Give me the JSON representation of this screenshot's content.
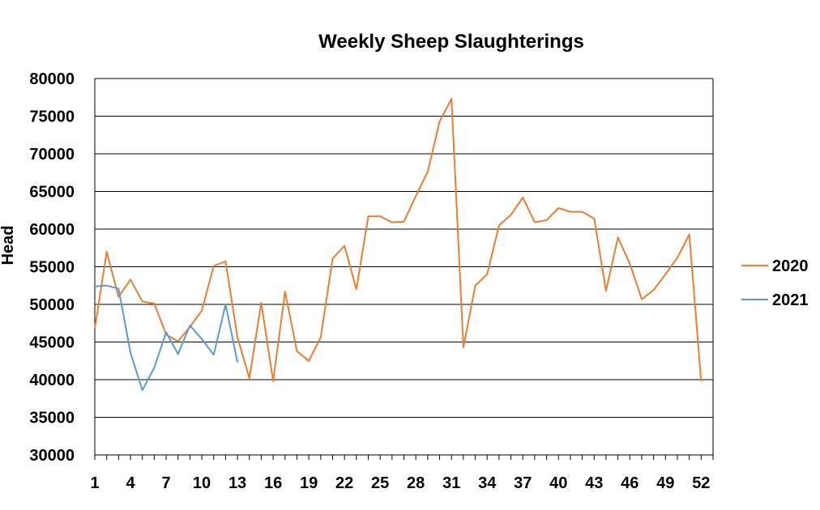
{
  "chart_data": {
    "type": "line",
    "title": "Weekly Sheep Slaughterings",
    "xlabel": "",
    "ylabel": "Head",
    "ylim": [
      30000,
      80000
    ],
    "xlim": [
      1,
      53
    ],
    "ytick_values": [
      30000,
      35000,
      40000,
      45000,
      50000,
      55000,
      60000,
      65000,
      70000,
      75000,
      80000
    ],
    "xtick_values": [
      1,
      4,
      7,
      10,
      13,
      16,
      19,
      22,
      25,
      28,
      31,
      34,
      37,
      40,
      43,
      46,
      49,
      52
    ],
    "grid": "horizontal",
    "legend_position": "right",
    "series": [
      {
        "name": "2020",
        "color": "#ED7D31",
        "x": [
          1,
          2,
          3,
          4,
          5,
          6,
          7,
          8,
          9,
          10,
          11,
          12,
          13,
          14,
          15,
          16,
          17,
          18,
          19,
          20,
          21,
          22,
          23,
          24,
          25,
          26,
          27,
          28,
          29,
          30,
          31,
          32,
          33,
          34,
          35,
          36,
          37,
          38,
          39,
          40,
          41,
          42,
          43,
          44,
          45,
          46,
          47,
          48,
          49,
          50,
          51,
          52
        ],
        "values": [
          46800,
          57000,
          51000,
          53300,
          50400,
          50100,
          46000,
          45100,
          47000,
          49200,
          55100,
          55700,
          45600,
          40200,
          50200,
          39800,
          51700,
          43800,
          42500,
          45600,
          56100,
          57800,
          52000,
          61700,
          61700,
          60900,
          61000,
          64400,
          67600,
          74300,
          77300,
          44300,
          52500,
          54000,
          60500,
          61900,
          64200,
          60900,
          61200,
          62800,
          62300,
          62300,
          61400,
          51800,
          58900,
          55400,
          50700,
          51900,
          54000,
          56200,
          59300,
          39800
        ]
      },
      {
        "name": "2021",
        "color": "#5B9BD5",
        "x": [
          1,
          2,
          3,
          4,
          5,
          6,
          7,
          8,
          9,
          10,
          11,
          12,
          13
        ],
        "values": [
          52400,
          52500,
          52100,
          43600,
          38600,
          41600,
          46300,
          43400,
          47200,
          45400,
          43300,
          50000,
          42300
        ]
      }
    ]
  }
}
